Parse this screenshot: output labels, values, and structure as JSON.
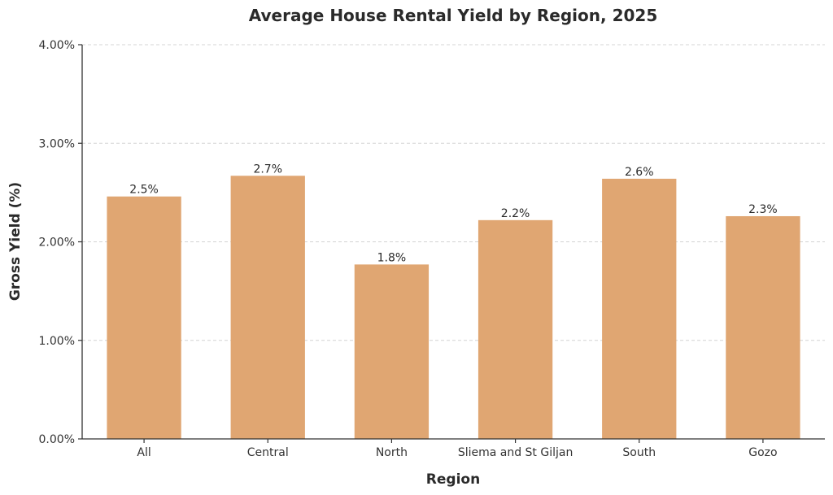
{
  "chart_data": {
    "type": "bar",
    "title": "Average House Rental Yield by Region, 2025",
    "xlabel": "Region",
    "ylabel": "Gross Yield (%)",
    "categories": [
      "All",
      "Central",
      "North",
      "Sliema and St Giljan",
      "South",
      "Gozo"
    ],
    "values": [
      2.46,
      2.67,
      1.77,
      2.22,
      2.64,
      2.26
    ],
    "data_labels": [
      "2.5%",
      "2.7%",
      "1.8%",
      "2.2%",
      "2.6%",
      "2.3%"
    ],
    "ylim": [
      0,
      4
    ],
    "yticks": [
      0,
      1,
      2,
      3,
      4
    ],
    "ytick_labels": [
      "0.00%",
      "1.00%",
      "2.00%",
      "3.00%",
      "4.00%"
    ],
    "grid": "y-dashed",
    "legend": "none",
    "bar_color": "#e0a672"
  }
}
